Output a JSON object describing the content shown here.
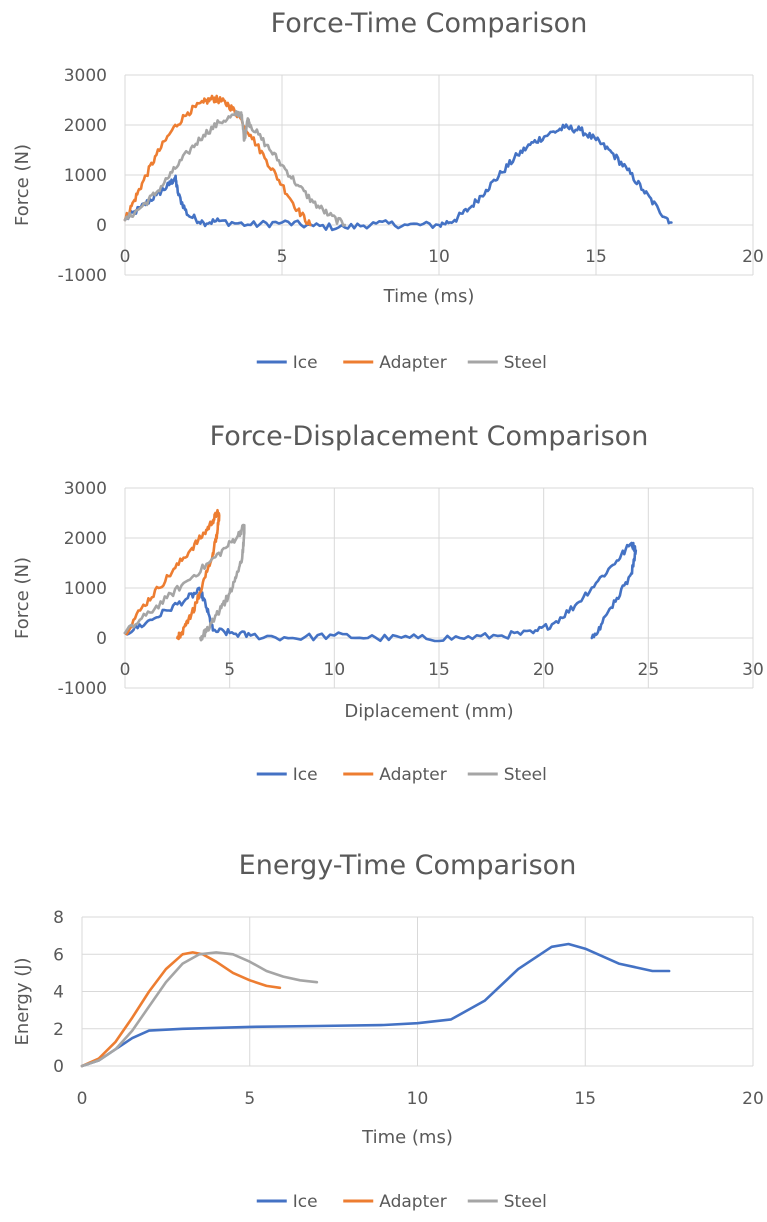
{
  "chart_data": [
    {
      "type": "line",
      "title": "Force-Time Comparison",
      "xlabel": "Time (ms)",
      "ylabel": "Force (N)",
      "xlim": [
        0,
        20
      ],
      "ylim": [
        -1000,
        3000
      ],
      "xticks": [
        0,
        5,
        10,
        15,
        20
      ],
      "yticks": [
        -1000,
        0,
        1000,
        2000,
        3000
      ],
      "grid": true,
      "legend": "bottom",
      "noise": true,
      "series": [
        {
          "name": "Ice",
          "color": "#4472c4",
          "x": [
            0,
            0.5,
            1.0,
            1.4,
            1.6,
            1.7,
            2.0,
            2.5,
            3,
            4,
            5,
            6,
            7,
            8,
            9,
            10,
            10.5,
            11,
            11.5,
            12,
            12.5,
            13,
            13.5,
            14,
            14.5,
            15,
            15.5,
            16,
            16.5,
            17,
            17.4
          ],
          "values": [
            100,
            350,
            600,
            800,
            950,
            600,
            200,
            50,
            80,
            0,
            50,
            -20,
            -50,
            30,
            0,
            0,
            100,
            350,
            700,
            1050,
            1400,
            1650,
            1820,
            1950,
            1900,
            1700,
            1450,
            1100,
            700,
            300,
            50
          ]
        },
        {
          "name": "Adapter",
          "color": "#ed7d31",
          "x": [
            0,
            0.3,
            0.6,
            1.0,
            1.5,
            2.0,
            2.5,
            2.8,
            3.0,
            3.3,
            3.6,
            4.0,
            4.5,
            5.0,
            5.5,
            5.9
          ],
          "values": [
            100,
            500,
            900,
            1400,
            1900,
            2250,
            2450,
            2530,
            2500,
            2400,
            2200,
            1800,
            1300,
            800,
            300,
            0
          ]
        },
        {
          "name": "Steel",
          "color": "#a5a5a5",
          "x": [
            0,
            0.5,
            1.0,
            1.5,
            2.0,
            2.5,
            3.0,
            3.5,
            3.7,
            3.8,
            3.9,
            4.0,
            4.5,
            5.0,
            5.5,
            6.0,
            6.5,
            7.0
          ],
          "values": [
            100,
            350,
            650,
            1050,
            1450,
            1800,
            2050,
            2200,
            2250,
            1700,
            2100,
            2000,
            1600,
            1200,
            800,
            450,
            200,
            0
          ]
        }
      ]
    },
    {
      "type": "line",
      "title": "Force-Displacement Comparison",
      "xlabel": "Diplacement (mm)",
      "ylabel": "Force (N)",
      "xlim": [
        0,
        30
      ],
      "ylim": [
        -1000,
        3000
      ],
      "xticks": [
        0,
        5,
        10,
        15,
        20,
        25,
        30
      ],
      "yticks": [
        -1000,
        0,
        1000,
        2000,
        3000
      ],
      "grid": true,
      "legend": "bottom",
      "noise": true,
      "series": [
        {
          "name": "Ice",
          "color": "#4472c4",
          "x": [
            0,
            1,
            2,
            3,
            3.6,
            3.9,
            4.2,
            5,
            6,
            8,
            10,
            12,
            14,
            16,
            18,
            19.5,
            20.5,
            21.5,
            22.5,
            23.5,
            24.2,
            24.4,
            24.2,
            23.5,
            22.8,
            22.3
          ],
          "values": [
            100,
            300,
            550,
            800,
            950,
            600,
            150,
            100,
            50,
            0,
            50,
            0,
            0,
            0,
            50,
            100,
            300,
            650,
            1100,
            1550,
            1900,
            1750,
            1300,
            800,
            300,
            0
          ]
        },
        {
          "name": "Adapter",
          "color": "#ed7d31",
          "x": [
            0,
            0.8,
            1.6,
            2.4,
            3.2,
            3.8,
            4.2,
            4.4,
            4.5,
            4.4,
            4.2,
            3.8,
            3.4,
            3.0,
            2.7,
            2.5
          ],
          "values": [
            100,
            600,
            1000,
            1400,
            1800,
            2100,
            2350,
            2500,
            2450,
            2100,
            1700,
            1200,
            700,
            300,
            100,
            0
          ]
        },
        {
          "name": "Steel",
          "color": "#a5a5a5",
          "x": [
            0,
            1,
            2,
            3,
            4,
            4.8,
            5.4,
            5.7,
            5.7,
            5.6,
            5.3,
            5.0,
            4.6,
            4.2,
            3.9,
            3.6
          ],
          "values": [
            100,
            450,
            800,
            1150,
            1500,
            1800,
            2050,
            2250,
            2100,
            1600,
            1200,
            900,
            600,
            350,
            150,
            0
          ]
        }
      ]
    },
    {
      "type": "line",
      "title": "Energy-Time Comparison",
      "xlabel": "Time (ms)",
      "ylabel": "Energy (J)",
      "xlim": [
        0,
        20
      ],
      "ylim": [
        0,
        8
      ],
      "xticks": [
        0,
        5,
        10,
        15,
        20
      ],
      "yticks": [
        0,
        2,
        4,
        6,
        8
      ],
      "grid": true,
      "legend": "bottom",
      "noise": false,
      "series": [
        {
          "name": "Ice",
          "color": "#4472c4",
          "x": [
            0,
            0.5,
            1.0,
            1.5,
            2.0,
            3,
            5,
            7,
            9,
            10,
            11,
            12,
            13,
            14,
            14.5,
            15,
            16,
            17,
            17.5
          ],
          "values": [
            0,
            0.3,
            0.9,
            1.5,
            1.9,
            2.0,
            2.1,
            2.15,
            2.2,
            2.3,
            2.5,
            3.5,
            5.2,
            6.4,
            6.55,
            6.3,
            5.5,
            5.1,
            5.1
          ]
        },
        {
          "name": "Adapter",
          "color": "#ed7d31",
          "x": [
            0,
            0.5,
            1.0,
            1.5,
            2.0,
            2.5,
            3.0,
            3.3,
            3.6,
            4.0,
            4.5,
            5.0,
            5.5,
            5.9
          ],
          "values": [
            0,
            0.4,
            1.3,
            2.6,
            4.0,
            5.2,
            6.0,
            6.1,
            6.0,
            5.6,
            5.0,
            4.6,
            4.3,
            4.2
          ]
        },
        {
          "name": "Steel",
          "color": "#a5a5a5",
          "x": [
            0,
            0.5,
            1.0,
            1.5,
            2.0,
            2.5,
            3.0,
            3.5,
            4.0,
            4.5,
            5.0,
            5.5,
            6.0,
            6.5,
            7.0
          ],
          "values": [
            0,
            0.3,
            0.9,
            1.9,
            3.2,
            4.5,
            5.5,
            6.0,
            6.1,
            6.0,
            5.6,
            5.1,
            4.8,
            4.6,
            4.5
          ]
        }
      ]
    }
  ]
}
